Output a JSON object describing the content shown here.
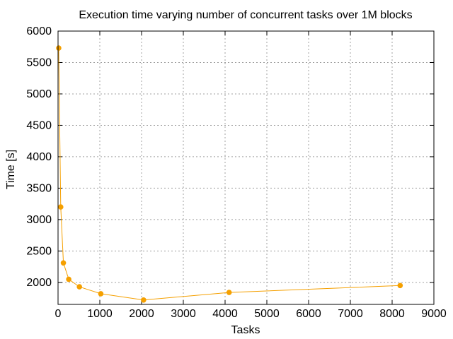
{
  "chart_data": {
    "type": "line",
    "title": "Execution time varying number of concurrent tasks over 1M blocks",
    "xlabel": "Tasks",
    "ylabel": "Time [s]",
    "xlim": [
      0,
      9000
    ],
    "ylim": [
      1650,
      6000
    ],
    "x_ticks": [
      "0",
      "1000",
      "2000",
      "3000",
      "4000",
      "5000",
      "6000",
      "7000",
      "8000",
      "9000"
    ],
    "y_ticks": [
      "2000",
      "2500",
      "3000",
      "3500",
      "4000",
      "4500",
      "5000",
      "5500",
      "6000"
    ],
    "grid": true,
    "series": [
      {
        "color": "#f5a000",
        "points": [
          {
            "x": 16,
            "y": 5730
          },
          {
            "x": 64,
            "y": 3200
          },
          {
            "x": 128,
            "y": 2310
          },
          {
            "x": 256,
            "y": 2050
          },
          {
            "x": 512,
            "y": 1930
          },
          {
            "x": 1024,
            "y": 1820
          },
          {
            "x": 2048,
            "y": 1720
          },
          {
            "x": 4096,
            "y": 1840
          },
          {
            "x": 8192,
            "y": 1950
          }
        ]
      }
    ]
  }
}
